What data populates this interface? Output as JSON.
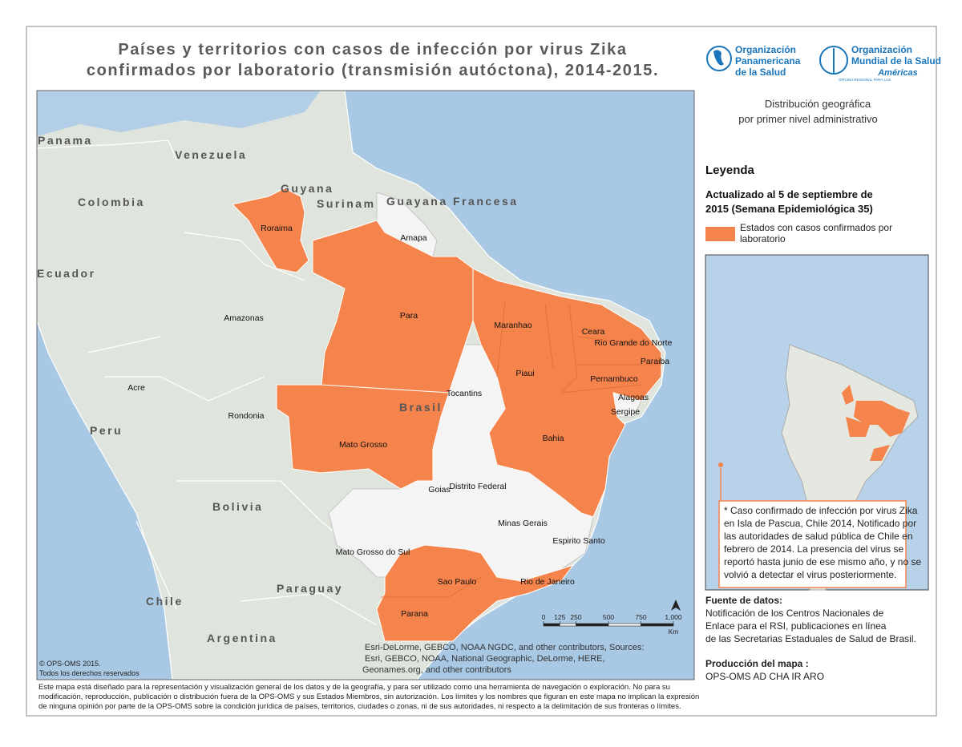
{
  "header": {
    "title": [
      "Países y territorios con casos de infección por virus Zika",
      "confirmados por laboratorio (transmisión autóctona), 2014-2015."
    ]
  },
  "logos": {
    "paho": [
      "Organización",
      "Panamericana",
      "de la Salud"
    ],
    "who": [
      "Organización",
      "Mundial de la Salud",
      "Américas"
    ],
    "who_sub": "OFICINA REGIONAL PARA LAS"
  },
  "subtitle": [
    "Distribución geográfica",
    "por primer nivel administrativo"
  ],
  "legend": {
    "title": "Leyenda",
    "updated": [
      "Actualizado al 5 de septiembre de",
      "2015 (Semana Epidemiológica 35)"
    ],
    "item": [
      "Estados con casos confirmados por",
      "laboratorio"
    ],
    "item_color": "#f5844c"
  },
  "note": [
    "* Caso confirmado de infección por virus Zika",
    "en Isla de Pascua, Chile 2014, Notificado por",
    "las autoridades de salud pública de Chile en",
    "febrero de 2014. La presencia del virus se",
    "reportó hasta junio de ese mismo año, y no se",
    "volvió a detectar el virus posteriormente."
  ],
  "source": {
    "title": "Fuente de datos:",
    "lines": [
      "Notificación de los Centros Nacionales de",
      "Enlace para el RSI, publicaciones en línea",
      "de las Secretarias Estaduales de Salud de Brasil."
    ]
  },
  "production": {
    "title": "Producción del mapa :",
    "text": "OPS-OMS AD CHA IR ARO"
  },
  "map": {
    "countries": [
      "Panama",
      "Venezuela",
      "Colombia",
      "Guyana",
      "Surinam",
      "Guayana Francesa",
      "Ecuador",
      "Peru",
      "Bolivia",
      "Brasil",
      "Paraguay",
      "Chile",
      "Argentina"
    ],
    "states": [
      "Roraima",
      "Amapa",
      "Amazonas",
      "Para",
      "Maranhao",
      "Ceara",
      "Rio Grande do Norte",
      "Paraiba",
      "Piaui",
      "Pernambuco",
      "Alagoas",
      "Sergipe",
      "Tocantins",
      "Acre",
      "Rondonia",
      "Bahia",
      "Mato Grosso",
      "Goias",
      "Distrito Federal",
      "Minas Gerais",
      "Espirito Santo",
      "Mato Grosso do Sul",
      "Sao Paulo",
      "Rio de Janeiro",
      "Parana"
    ],
    "scale": {
      "ticks": [
        0,
        125,
        250,
        500,
        750,
        {
          "value": 1000,
          "label": "1,000"
        }
      ],
      "unit": "Km"
    },
    "attribution": [
      "Esri-DeLorme, GEBCO, NOAA NGDC, and other contributors, Sources:",
      "Esri, GEBCO, NOAA, National Geographic, DeLorme, HERE,",
      "Geonames.org, and other contributors"
    ],
    "copyright": [
      "© OPS-OMS 2015.",
      "Todos los derechos reservados"
    ]
  },
  "disclaimer": [
    "Este mapa está diseñado para la representación y visualización general de los datos y de la geografía, y para ser utilizado como una herramienta de navegación o exploración. No para su",
    "modificación, reproducción, publicación o distribución fuera de la OPS-OMS y sus Estados Miembros, sin autorización. Los límites y los nombres que figuran en este mapa no implican la expresión",
    "de ninguna opinión por parte de la OPS-OMS sobre la condición jurídica de países, territorios, ciudades o zonas, ni de sus autoridades, ni respecto a la delimitación de sus fronteras o límites."
  ]
}
